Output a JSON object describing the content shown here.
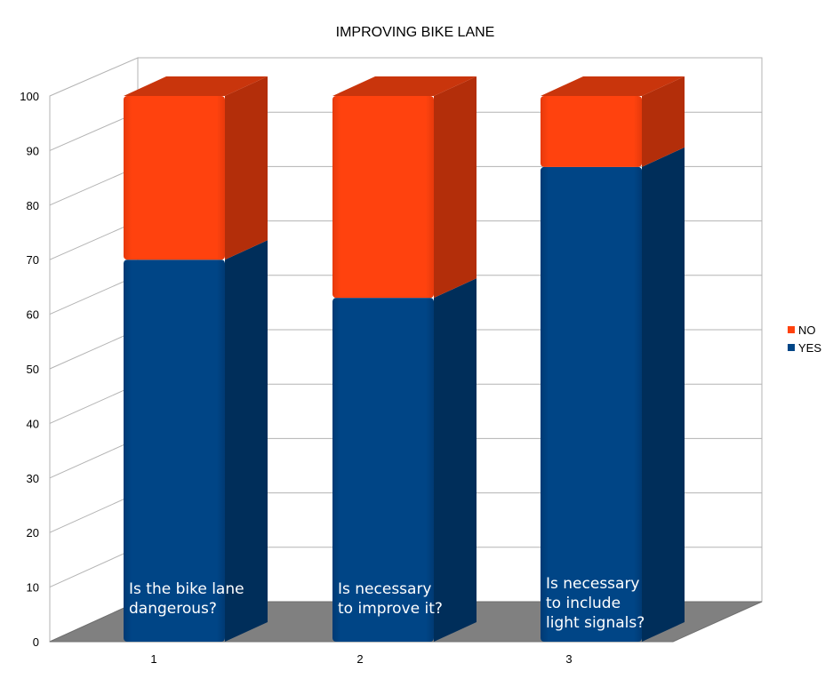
{
  "chart_data": {
    "type": "bar",
    "stacked": true,
    "three_d": true,
    "title": "IMPROVING BIKE LANE",
    "categories": [
      "1",
      "2",
      "3"
    ],
    "category_notes": [
      [
        "Is the bike lane",
        "dangerous?"
      ],
      [
        "Is necessary",
        "to improve it?"
      ],
      [
        "Is necessary",
        "to include",
        "light signals?"
      ]
    ],
    "series": [
      {
        "name": "YES",
        "color": "#004586",
        "values": [
          70,
          63,
          87
        ]
      },
      {
        "name": "NO",
        "color": "#ff420e",
        "values": [
          30,
          37,
          13
        ]
      }
    ],
    "legend_order": [
      "NO",
      "YES"
    ],
    "y_ticks": [
      "0",
      "10",
      "20",
      "30",
      "40",
      "50",
      "60",
      "70",
      "80",
      "90",
      "100"
    ],
    "ylim": [
      0,
      100
    ],
    "grid": true,
    "legend_position": "right"
  }
}
